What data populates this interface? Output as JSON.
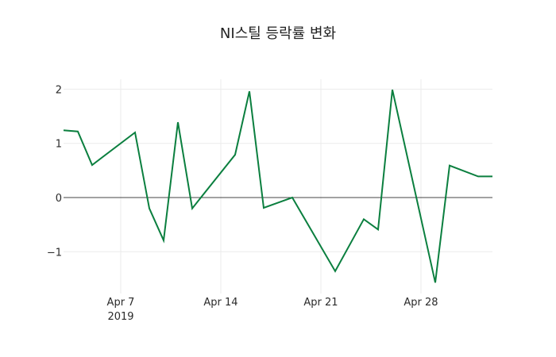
{
  "chart_data": {
    "type": "line",
    "title": "NI스틸 등락률 변화",
    "xlabel": "",
    "ylabel": "",
    "x": [
      "2019-04-03",
      "2019-04-04",
      "2019-04-05",
      "2019-04-08",
      "2019-04-09",
      "2019-04-10",
      "2019-04-11",
      "2019-04-12",
      "2019-04-15",
      "2019-04-16",
      "2019-04-17",
      "2019-04-19",
      "2019-04-22",
      "2019-04-24",
      "2019-04-25",
      "2019-04-26",
      "2019-04-29",
      "2019-04-30",
      "2019-05-02",
      "2019-05-03"
    ],
    "series": [
      {
        "name": "등락률",
        "color": "#0b7f3f",
        "values": [
          1.24,
          1.22,
          0.6,
          1.2,
          -0.2,
          -0.79,
          1.39,
          -0.2,
          0.79,
          1.96,
          -0.19,
          0.0,
          -1.36,
          -0.4,
          -0.59,
          1.99,
          -1.57,
          0.59,
          0.39,
          0.39
        ]
      }
    ],
    "x_ticks": [
      {
        "label": "Apr 7",
        "sub": "2019",
        "date": "2019-04-07"
      },
      {
        "label": "Apr 14",
        "date": "2019-04-14"
      },
      {
        "label": "Apr 21",
        "date": "2019-04-21"
      },
      {
        "label": "Apr 28",
        "date": "2019-04-28"
      }
    ],
    "y_ticks": [
      2,
      1,
      0,
      -1
    ],
    "y_tick_labels": [
      "2",
      "1",
      "0",
      "−1"
    ],
    "ylim": [
      -1.75,
      2.2
    ],
    "grid": true,
    "zeroline": true,
    "legend": false
  }
}
